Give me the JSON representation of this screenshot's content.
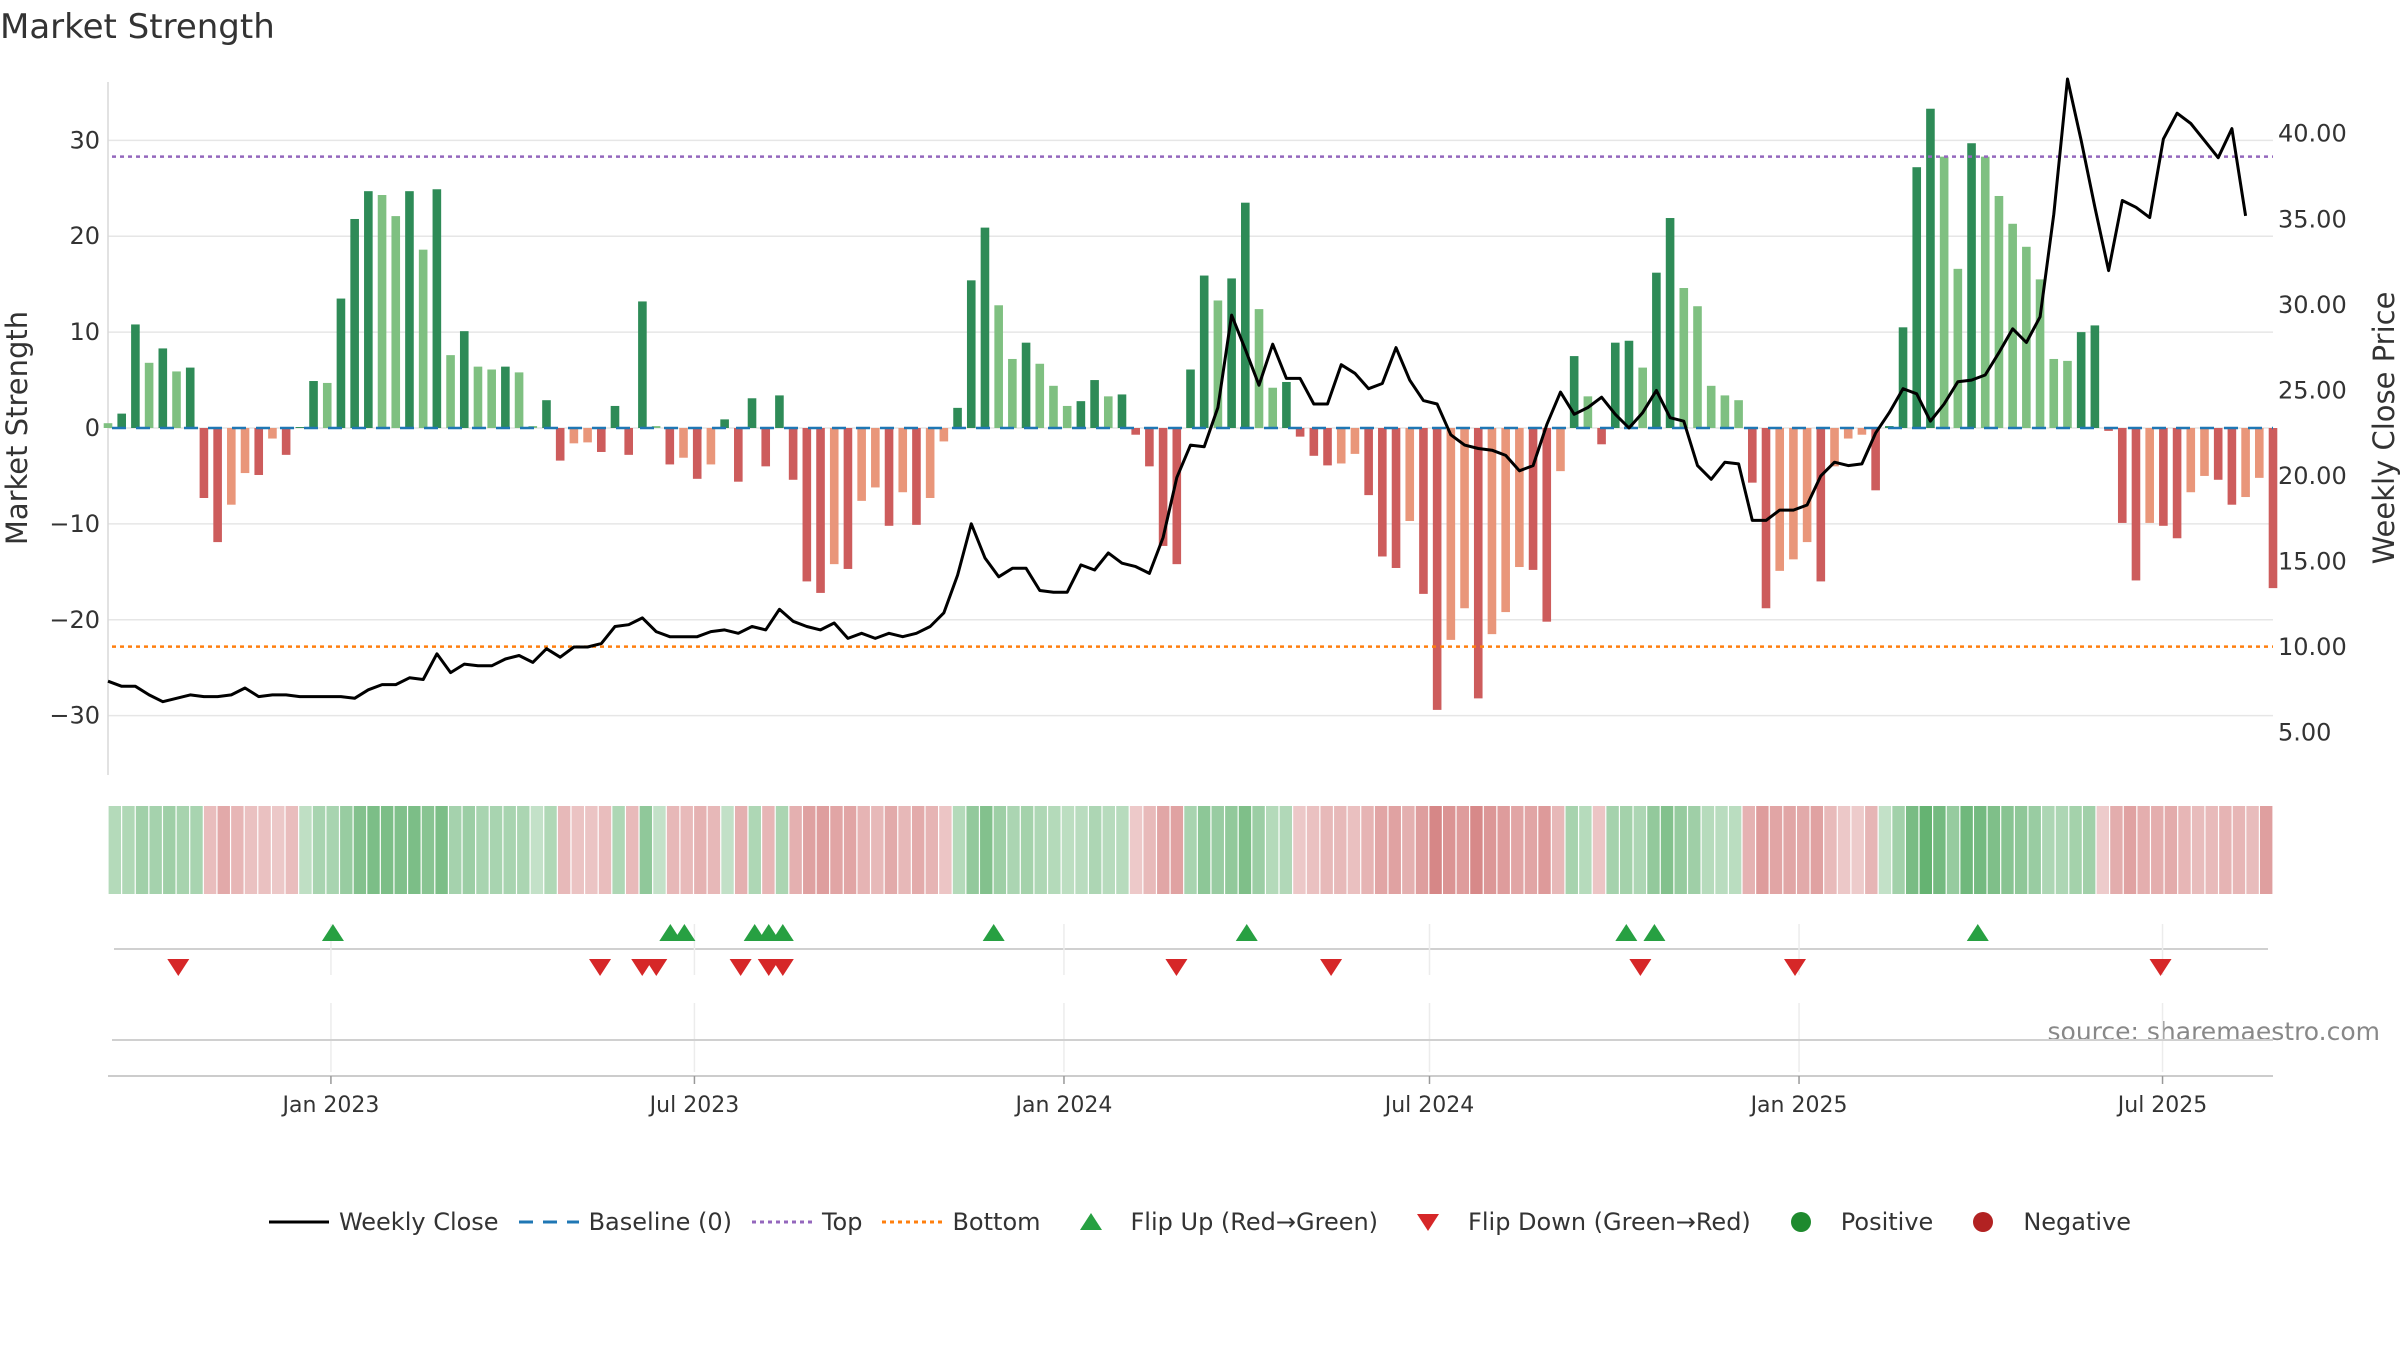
{
  "chart_data": {
    "type": "bar",
    "title": "Market Strength",
    "ylabel": "Market Strength",
    "y2label": "Weekly Close Price",
    "source": "source: sharemaestro.com",
    "ylim": [
      -36.4,
      36.4
    ],
    "y2lim": [
      2.4,
      43.2
    ],
    "yticks": [
      30,
      20,
      10,
      0,
      -10,
      -20,
      -30
    ],
    "ytick_labels": [
      "30",
      "20",
      "10",
      "0",
      "−10",
      "−20",
      "−30"
    ],
    "y2ticks": [
      40,
      35,
      30,
      25,
      20,
      15,
      10,
      5
    ],
    "y2tick_labels": [
      "40.00",
      "35.00",
      "30.00",
      "25.00",
      "20.00",
      "15.00",
      "10.00",
      "5.00"
    ],
    "x_start": "2022-09-12",
    "x_end": "2025-08-25",
    "xticks": [
      {
        "date": "2023-01-01",
        "label": "Jan 2023"
      },
      {
        "date": "2023-07-01",
        "label": "Jul 2023"
      },
      {
        "date": "2024-01-01",
        "label": "Jan 2024"
      },
      {
        "date": "2024-07-01",
        "label": "Jul 2024"
      },
      {
        "date": "2025-01-01",
        "label": "Jan 2025"
      },
      {
        "date": "2025-07-01",
        "label": "Jul 2025"
      }
    ],
    "top_level": 28.3,
    "bottom_level": -22.8,
    "strength": [
      0.5,
      1.5,
      10.8,
      6.8,
      8.3,
      5.9,
      6.3,
      -7.3,
      -11.9,
      -8.0,
      -4.7,
      -4.9,
      -1.1,
      -2.8,
      0.1,
      4.9,
      4.7,
      13.5,
      21.8,
      24.7,
      24.3,
      22.1,
      24.7,
      18.6,
      24.9,
      7.6,
      10.1,
      6.4,
      6.1,
      6.4,
      5.8,
      0.2,
      2.9,
      -3.4,
      -1.6,
      -1.5,
      -2.5,
      2.3,
      -2.8,
      13.2,
      0.2,
      -3.8,
      -3.1,
      -5.3,
      -3.8,
      0.9,
      -5.6,
      3.1,
      -4.0,
      3.4,
      -5.4,
      -16.0,
      -17.2,
      -14.2,
      -14.7,
      -7.6,
      -6.2,
      -10.2,
      -6.7,
      -10.1,
      -7.3,
      -1.4,
      2.1,
      15.4,
      20.9,
      12.8,
      7.2,
      8.9,
      6.7,
      4.4,
      2.3,
      2.8,
      5.0,
      3.3,
      3.5,
      -0.7,
      -4.0,
      -12.3,
      -14.2,
      6.1,
      15.9,
      13.3,
      15.6,
      23.5,
      12.4,
      4.2,
      4.8,
      -0.9,
      -2.9,
      -3.9,
      -3.7,
      -2.7,
      -7.0,
      -13.4,
      -14.6,
      -9.7,
      -17.3,
      -29.4,
      -22.1,
      -18.8,
      -28.2,
      -21.5,
      -19.2,
      -14.5,
      -14.8,
      -20.2,
      -4.5,
      7.5,
      3.3,
      -1.7,
      8.9,
      9.1,
      6.3,
      16.2,
      21.9,
      14.6,
      12.7,
      4.4,
      3.4,
      2.9,
      -5.7,
      -18.8,
      -14.9,
      -13.7,
      -11.9,
      -16.0,
      -4.0,
      -1.1,
      -0.7,
      -6.5,
      0.2,
      10.5,
      27.2,
      33.3,
      28.3,
      16.6,
      29.7,
      28.3,
      24.2,
      21.3,
      18.9,
      15.5,
      7.2,
      7.0,
      10.0,
      10.7,
      -0.3,
      -9.9,
      -15.9,
      -9.9,
      -10.2,
      -11.5,
      -6.7,
      -5.0,
      -5.4,
      -8.0,
      -7.2,
      -5.2,
      -16.7
    ],
    "weekly_close": [
      8.0,
      7.7,
      7.7,
      7.2,
      6.8,
      7.0,
      7.2,
      7.1,
      7.1,
      7.2,
      7.6,
      7.1,
      7.2,
      7.2,
      7.1,
      7.1,
      7.1,
      7.1,
      7.0,
      7.5,
      7.8,
      7.8,
      8.2,
      8.1,
      9.6,
      8.5,
      9.0,
      8.9,
      8.9,
      9.3,
      9.5,
      9.1,
      9.9,
      9.4,
      10.0,
      10.0,
      10.2,
      11.2,
      11.3,
      11.7,
      10.9,
      10.6,
      10.6,
      10.6,
      10.9,
      11.0,
      10.8,
      11.2,
      11.0,
      12.2,
      11.5,
      11.2,
      11.0,
      11.4,
      10.5,
      10.8,
      10.5,
      10.8,
      10.6,
      10.8,
      11.2,
      12.0,
      14.2,
      17.2,
      15.2,
      14.1,
      14.6,
      14.6,
      13.3,
      13.2,
      13.2,
      14.8,
      14.5,
      15.5,
      14.9,
      14.7,
      14.3,
      16.4,
      19.9,
      21.8,
      21.7,
      24.0,
      29.4,
      27.4,
      25.3,
      27.7,
      25.7,
      25.7,
      24.2,
      24.2,
      26.5,
      26.0,
      25.1,
      25.4,
      27.5,
      25.6,
      24.4,
      24.2,
      22.4,
      21.8,
      21.6,
      21.5,
      21.2,
      20.3,
      20.6,
      23.0,
      24.9,
      23.6,
      24.0,
      24.6,
      23.6,
      22.8,
      23.7,
      25.0,
      23.4,
      23.2,
      20.6,
      19.8,
      20.8,
      20.7,
      17.4,
      17.4,
      18.0,
      18.0,
      18.3,
      20.0,
      20.8,
      20.6,
      20.7,
      22.5,
      23.7,
      25.1,
      24.8,
      23.2,
      24.2,
      25.5,
      25.6,
      25.9,
      27.2,
      28.6,
      27.8,
      29.3,
      35.3,
      43.2,
      39.6,
      35.7,
      32.0,
      36.1,
      35.7,
      35.1,
      39.7,
      41.2,
      40.6,
      39.6,
      38.6,
      40.3,
      35.2
    ],
    "heat_strip": [
      22,
      25,
      35,
      32,
      36,
      31,
      30,
      -20,
      -35,
      -25,
      -17,
      -17,
      -12,
      -20,
      15,
      30,
      30,
      41,
      55,
      60,
      60,
      57,
      60,
      52,
      60,
      32,
      38,
      30,
      30,
      30,
      28,
      12,
      25,
      -23,
      -16,
      -15,
      -20,
      26,
      -22,
      46,
      12,
      -24,
      -22,
      -28,
      -24,
      13,
      -30,
      26,
      -25,
      28,
      -30,
      -41,
      -43,
      -38,
      -38,
      -27,
      -23,
      -34,
      -24,
      -33,
      -27,
      -14,
      22,
      44,
      55,
      37,
      28,
      33,
      26,
      22,
      17,
      19,
      27,
      20,
      20,
      -11,
      -22,
      -37,
      -40,
      30,
      48,
      40,
      45,
      58,
      38,
      22,
      24,
      -12,
      -17,
      -23,
      -23,
      -18,
      -27,
      -38,
      -40,
      -30,
      -43,
      -60,
      -50,
      -44,
      -58,
      -48,
      -44,
      -38,
      -38,
      -46,
      -24,
      31,
      21,
      -14,
      32,
      33,
      27,
      44,
      55,
      42,
      36,
      21,
      19,
      18,
      -28,
      -44,
      -38,
      -37,
      -34,
      -40,
      -22,
      -12,
      -10,
      -26,
      12,
      34,
      62,
      75,
      65,
      42,
      68,
      65,
      58,
      52,
      47,
      40,
      27,
      27,
      33,
      35,
      -10,
      -32,
      -40,
      -31,
      -31,
      -33,
      -25,
      -21,
      -22,
      -27,
      -25,
      -21,
      -42
    ],
    "flip_up_dates": [
      "2023-01-02",
      "2023-06-19",
      "2023-06-26",
      "2023-07-31",
      "2023-08-07",
      "2023-08-14",
      "2023-11-27",
      "2024-04-01",
      "2024-10-07",
      "2024-10-21",
      "2025-03-31"
    ],
    "flip_down_dates": [
      "2022-10-17",
      "2023-05-15",
      "2023-06-05",
      "2023-06-12",
      "2023-07-24",
      "2023-08-07",
      "2023-08-14",
      "2024-02-26",
      "2024-05-13",
      "2024-10-14",
      "2024-12-30",
      "2025-06-30"
    ],
    "colors": {
      "strong_green": "#2e8b57",
      "light_green": "#7fc081",
      "strong_red": "#cd5c5c",
      "light_red": "#e9967a",
      "line": "#000000",
      "baseline": "#1f77b4",
      "top": "#9467bd",
      "bottom": "#ff7f0e",
      "flip_up": "#27a042",
      "flip_down": "#d62728",
      "positive": "#1e8a2e",
      "negative": "#b22222"
    },
    "legend": [
      {
        "label": "Weekly Close",
        "symbol": "line-solid",
        "color": "#000000"
      },
      {
        "label": "Baseline (0)",
        "symbol": "line-dashed",
        "color": "#1f77b4"
      },
      {
        "label": "Top",
        "symbol": "line-dotted",
        "color": "#9467bd"
      },
      {
        "label": "Bottom",
        "symbol": "line-dotted",
        "color": "#ff7f0e"
      },
      {
        "label": "Flip Up (Red→Green)",
        "symbol": "triangle-up",
        "color": "#27a042"
      },
      {
        "label": "Flip Down (Green→Red)",
        "symbol": "triangle-down",
        "color": "#d62728"
      },
      {
        "label": "Positive",
        "symbol": "circle",
        "color": "#1e8a2e"
      },
      {
        "label": "Negative",
        "symbol": "circle",
        "color": "#b22222"
      }
    ]
  }
}
